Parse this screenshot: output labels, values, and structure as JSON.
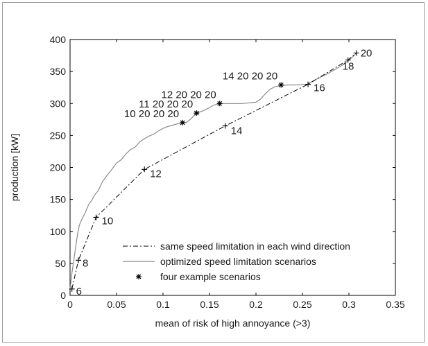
{
  "chart_data": {
    "type": "line",
    "xlabel": "mean of risk of high annoyance (>3)",
    "ylabel": "production [kW]",
    "xlim": [
      0,
      0.35
    ],
    "ylim": [
      0,
      400
    ],
    "xticks": [
      0,
      0.05,
      0.1,
      0.15,
      0.2,
      0.25,
      0.3,
      0.35
    ],
    "yticks": [
      0,
      50,
      100,
      150,
      200,
      250,
      300,
      350,
      400
    ],
    "xtick_labels": [
      "0",
      "0.05",
      "0.1",
      "0.15",
      "0.2",
      "0.25",
      "0.3",
      "0.35"
    ],
    "ytick_labels": [
      "0",
      "50",
      "100",
      "150",
      "200",
      "250",
      "300",
      "350",
      "400"
    ],
    "grid": false,
    "legend_position": "bottom-right",
    "series": [
      {
        "name": "same speed limitation in each wind direction",
        "style": "dash-dot",
        "color": "#000000",
        "points": [
          {
            "x": 0.002,
            "y": 10,
            "label": "6"
          },
          {
            "x": 0.009,
            "y": 55,
            "label": "8"
          },
          {
            "x": 0.028,
            "y": 122,
            "label": "10"
          },
          {
            "x": 0.08,
            "y": 197,
            "label": "12"
          },
          {
            "x": 0.167,
            "y": 265,
            "label": "14"
          },
          {
            "x": 0.256,
            "y": 330,
            "label": "16"
          },
          {
            "x": 0.299,
            "y": 368,
            "label": "18"
          },
          {
            "x": 0.308,
            "y": 379,
            "label": "20"
          }
        ]
      },
      {
        "name": "optimized speed limitation scenarios",
        "style": "solid",
        "color": "#8a8a8a",
        "x": [
          0.0,
          0.002,
          0.004,
          0.006,
          0.008,
          0.01,
          0.013,
          0.016,
          0.02,
          0.023,
          0.027,
          0.03,
          0.035,
          0.04,
          0.045,
          0.05,
          0.055,
          0.06,
          0.065,
          0.07,
          0.075,
          0.08,
          0.085,
          0.09,
          0.095,
          0.1,
          0.105,
          0.11,
          0.115,
          0.12,
          0.125,
          0.13,
          0.136,
          0.142,
          0.148,
          0.154,
          0.16,
          0.17,
          0.185,
          0.2,
          0.205,
          0.21,
          0.215,
          0.22,
          0.227,
          0.235,
          0.245,
          0.255,
          0.265,
          0.275,
          0.285,
          0.295,
          0.3,
          0.305,
          0.308
        ],
        "y": [
          10,
          35,
          55,
          75,
          95,
          110,
          120,
          128,
          142,
          148,
          158,
          163,
          178,
          188,
          197,
          207,
          212,
          221,
          228,
          232,
          240,
          245,
          249,
          252,
          257,
          261,
          264,
          266,
          268,
          270,
          270,
          276,
          285,
          288,
          292,
          297,
          300,
          300,
          300,
          302,
          307,
          315,
          322,
          326,
          328,
          329,
          329,
          330,
          338,
          345,
          353,
          362,
          368,
          374,
          379
        ]
      },
      {
        "name": "four example scenarios",
        "style": "marker-asterisk",
        "color": "#000000",
        "points": [
          {
            "x": 0.121,
            "y": 270,
            "label": "10 20 20 20"
          },
          {
            "x": 0.136,
            "y": 285,
            "label": "11 20 20 20"
          },
          {
            "x": 0.161,
            "y": 300,
            "label": "12 20 20 20"
          },
          {
            "x": 0.227,
            "y": 329,
            "label": "14 20 20 20"
          }
        ]
      }
    ]
  }
}
